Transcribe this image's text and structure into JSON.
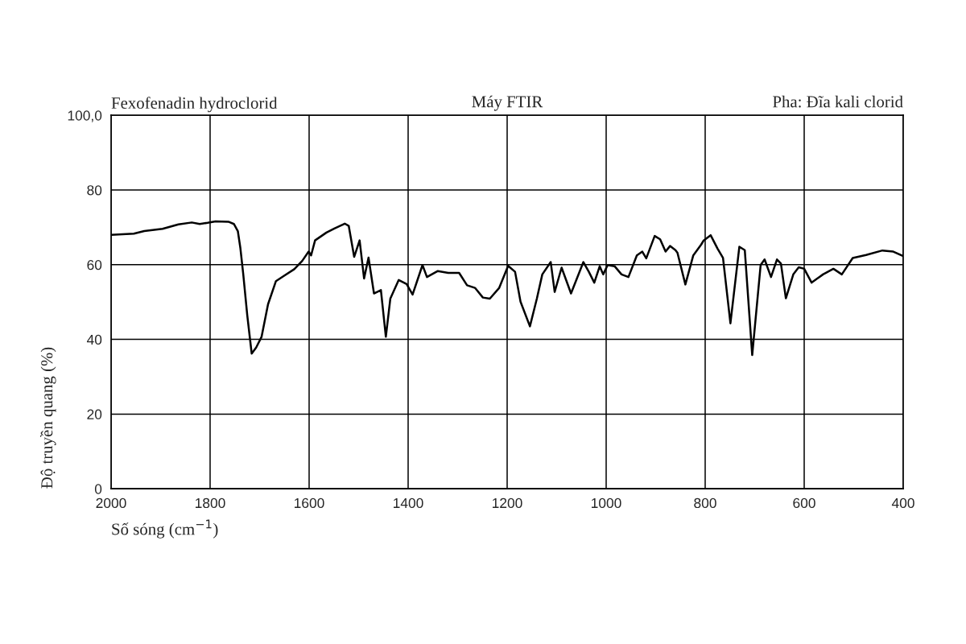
{
  "chart_data": {
    "type": "line",
    "title": "Fexofenadin hydroclorid",
    "annotations": [
      "Máy FTIR",
      "Pha: Đĩa kali clorid"
    ],
    "xlabel": "Số sóng (cm$^{−1}$)",
    "ylabel": "Độ truyền quang (%)",
    "x": [
      2000,
      1954,
      1933,
      1896,
      1864,
      1837,
      1821,
      1805,
      1789,
      1763,
      1752,
      1744,
      1739,
      1733,
      1725,
      1716,
      1707,
      1696,
      1683,
      1667,
      1651,
      1630,
      1614,
      1601,
      1596,
      1588,
      1565,
      1549,
      1528,
      1520,
      1509,
      1498,
      1489,
      1480,
      1469,
      1455,
      1445,
      1436,
      1419,
      1403,
      1391,
      1371,
      1362,
      1340,
      1319,
      1297,
      1281,
      1265,
      1249,
      1235,
      1216,
      1198,
      1184,
      1173,
      1154,
      1140,
      1129,
      1112,
      1104,
      1090,
      1071,
      1046,
      1035,
      1024,
      1013,
      1006,
      997,
      983,
      969,
      955,
      938,
      927,
      919,
      902,
      891,
      880,
      871,
      860,
      856,
      840,
      824,
      808,
      803,
      789,
      775,
      764,
      749,
      731,
      720,
      705,
      688,
      680,
      667,
      655,
      647,
      637,
      622,
      611,
      600,
      585,
      562,
      541,
      524,
      502,
      475,
      442,
      420,
      400
    ],
    "series": [
      {
        "color": "#000000",
        "values": [
          68.0,
          68.3,
          69.0,
          69.6,
          70.8,
          71.3,
          70.9,
          71.2,
          71.6,
          71.5,
          70.9,
          69.0,
          64.6,
          57.4,
          46.5,
          36.2,
          37.8,
          40.7,
          49.4,
          55.6,
          57.0,
          58.8,
          61.0,
          63.5,
          62.5,
          66.5,
          68.6,
          69.7,
          71.0,
          70.4,
          62.1,
          66.5,
          56.3,
          61.9,
          52.3,
          53.2,
          40.7,
          50.9,
          55.9,
          54.8,
          52.0,
          59.9,
          56.7,
          58.3,
          57.8,
          57.8,
          54.5,
          53.8,
          51.2,
          50.9,
          53.8,
          59.7,
          58.1,
          50.1,
          43.5,
          50.9,
          57.4,
          60.7,
          52.7,
          59.2,
          52.3,
          60.7,
          58.1,
          55.2,
          59.6,
          57.4,
          59.9,
          59.6,
          57.4,
          56.7,
          62.5,
          63.5,
          61.7,
          67.7,
          66.8,
          63.5,
          65.0,
          63.9,
          63.2,
          54.7,
          62.5,
          65.4,
          66.5,
          67.9,
          64.3,
          61.8,
          44.3,
          64.8,
          63.9,
          35.8,
          59.9,
          61.4,
          56.7,
          61.4,
          60.3,
          51.0,
          57.4,
          59.3,
          58.9,
          55.2,
          57.4,
          58.9,
          57.4,
          61.8,
          62.6,
          63.8,
          63.5,
          62.3
        ]
      }
    ],
    "xlim": [
      2000,
      400
    ],
    "xticks": [
      2000,
      1800,
      1600,
      1400,
      1200,
      1000,
      800,
      600,
      400
    ],
    "ylim": [
      0,
      100
    ],
    "yticks": [
      {
        "value": 100,
        "label": "100,0"
      },
      80,
      60,
      40,
      20,
      0
    ],
    "grid": true
  }
}
